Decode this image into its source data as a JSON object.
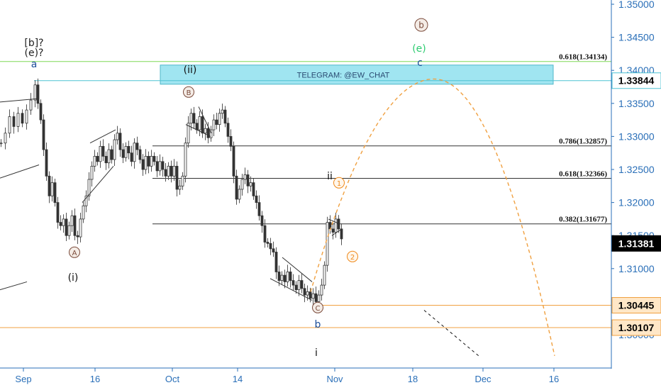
{
  "chart_data": {
    "type": "line",
    "subtype": "candlestick-price-chart",
    "instrument_note": "",
    "y_axis": {
      "ticks": [
        "1.35000",
        "1.34500",
        "1.34000",
        "1.33500",
        "1.33000",
        "1.32500",
        "1.32000",
        "1.31500",
        "1.31000",
        "1.30500",
        "1.30000"
      ],
      "tick_values": [
        1.35,
        1.345,
        1.34,
        1.335,
        1.33,
        1.325,
        1.32,
        1.315,
        1.31,
        1.305,
        1.3
      ],
      "range": [
        1.2965,
        1.3508
      ],
      "position": "right"
    },
    "x_axis": {
      "labels": [
        "Sep",
        "16",
        "Oct",
        "14",
        "Nov",
        "18",
        "Dec",
        "16"
      ]
    },
    "price_tags": [
      {
        "value": "1.33844",
        "color": "#ffffff",
        "text_color": "#000000",
        "border": "#4fc3d3"
      },
      {
        "value": "1.31381",
        "color": "#000000",
        "text_color": "#ffffff"
      },
      {
        "value": "1.30445",
        "color": "#ffe7c7",
        "text_color": "#000000",
        "border": "#f0a040"
      },
      {
        "value": "1.30107",
        "color": "#ffe7c7",
        "text_color": "#000000",
        "border": "#f0a040"
      }
    ],
    "fib_levels": [
      {
        "label": "0.618(1.34134)",
        "value": 1.34134,
        "color": "#7ed957"
      },
      {
        "label": "0.786(1.32857)",
        "value": 1.32857,
        "color": "#333333"
      },
      {
        "label": "0.618(1.32366)",
        "value": 1.32366,
        "color": "#333333"
      },
      {
        "label": "0.382(1.31677)",
        "value": 1.31677,
        "color": "#333333"
      }
    ],
    "horizontal_lines": [
      {
        "value": 1.33844,
        "color": "#4fc3d3"
      },
      {
        "value": 1.30445,
        "color": "#f0a040"
      },
      {
        "value": 1.30107,
        "color": "#f0a040"
      }
    ],
    "zone": {
      "label": "TELEGRAM: @EW_CHAT",
      "top": 1.3408,
      "bottom": 1.3379,
      "color": "#7fdcea"
    },
    "wave_labels": [
      {
        "text": "[b]?",
        "color": "#222222",
        "style": "plain"
      },
      {
        "text": "(e)?",
        "color": "#222222",
        "style": "plain"
      },
      {
        "text": "a",
        "color": "#1c4e9a",
        "style": "plain"
      },
      {
        "text": "(ii)",
        "color": "#111111",
        "style": "plain"
      },
      {
        "text": "B",
        "color": "#7a4a3a",
        "style": "circle"
      },
      {
        "text": "A",
        "color": "#7a4a3a",
        "style": "circle"
      },
      {
        "text": "(i)",
        "color": "#111111",
        "style": "plain"
      },
      {
        "text": "C",
        "color": "#7a4a3a",
        "style": "circle"
      },
      {
        "text": "b",
        "color": "#1c4e9a",
        "style": "plain"
      },
      {
        "text": "i",
        "color": "#111111",
        "style": "plain"
      },
      {
        "text": "ii",
        "color": "#111111",
        "style": "plain"
      },
      {
        "text": "1",
        "color": "#f08a1c",
        "style": "circle"
      },
      {
        "text": "2",
        "color": "#f08a1c",
        "style": "circle"
      },
      {
        "text": "b",
        "color": "#7a4a3a",
        "style": "circle"
      },
      {
        "text": "(e)",
        "color": "#2ecc71",
        "style": "plain"
      },
      {
        "text": "c",
        "color": "#1c4e9a",
        "style": "plain"
      }
    ],
    "grid": false,
    "legend": "none"
  }
}
